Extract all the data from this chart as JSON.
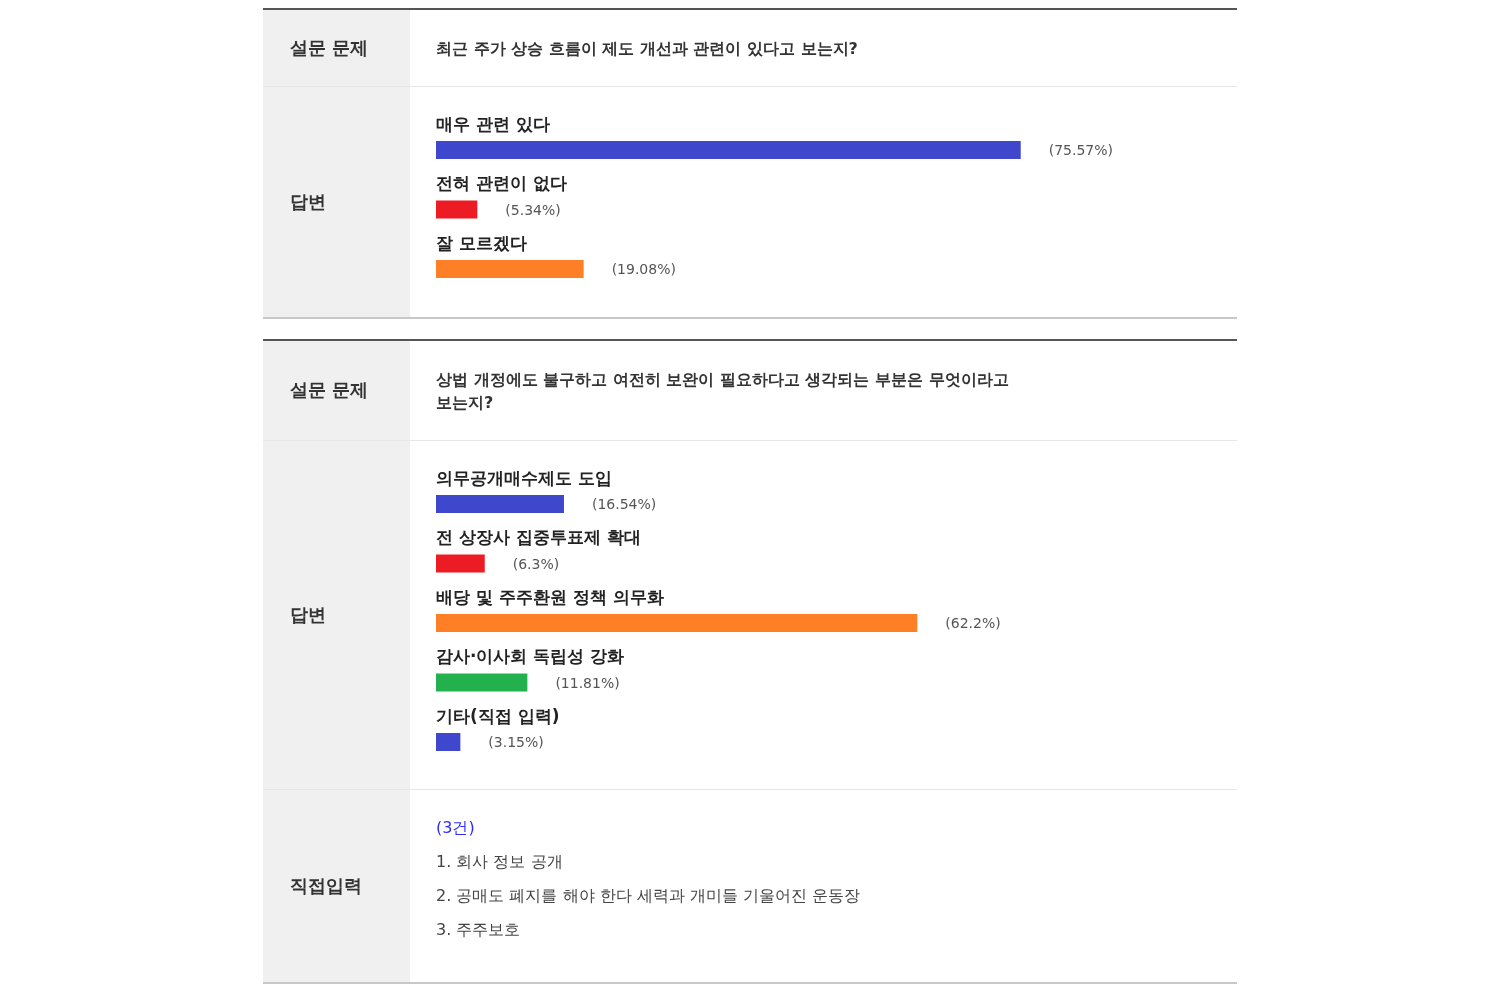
{
  "chart_data": [
    {
      "type": "bar",
      "orientation": "horizontal",
      "title": "최근 주가 상승 흐름이 제도 개선과 관련이 있다고 보는지?",
      "annotations": [
        "설문 문제"
      ],
      "ylabel": "답변",
      "categories": [
        "매우 관련 있다",
        "전혀 관련이 없다",
        "잘 모르겠다"
      ],
      "values": [
        75.57,
        5.34,
        19.08
      ],
      "colors": [
        "#3f48cc",
        "#ed1c24",
        "#ff7f27"
      ],
      "value_labels": [
        "(75.57%)",
        "(5.34%)",
        "(19.08%)"
      ],
      "tick_labels": false
    },
    {
      "type": "bar",
      "orientation": "horizontal",
      "title": "상법 개정에도 불구하고 여전히 보완이 필요하다고 생각되는 부분은 무엇이라고 보는지?",
      "annotations": [
        "설문 문제"
      ],
      "ylabel": "답변",
      "categories": [
        "의무공개매수제도 도입",
        "전 상장사 집중투표제 확대",
        "배당 및 주주환원 정책 의무화",
        "감사·이사회 독립성 강화",
        "기타(직접 입력)"
      ],
      "values": [
        16.54,
        6.3,
        62.2,
        11.81,
        3.15
      ],
      "colors": [
        "#3f48cc",
        "#ed1c24",
        "#ff7f27",
        "#22b14c",
        "#3f48cc"
      ],
      "value_labels": [
        "(16.54%)",
        "(6.3%)",
        "(62.2%)",
        "(11.81%)",
        "(3.15%)"
      ],
      "tick_labels": false
    },
    {
      "type": "other",
      "title": "직접입력",
      "annotations": [
        "(3건)",
        "1. 회사 정보 공개",
        "2. 공매도 폐지를 해야 한다 세력과 개미들 기울어진 운동장",
        "3. 주주보호"
      ]
    }
  ]
}
